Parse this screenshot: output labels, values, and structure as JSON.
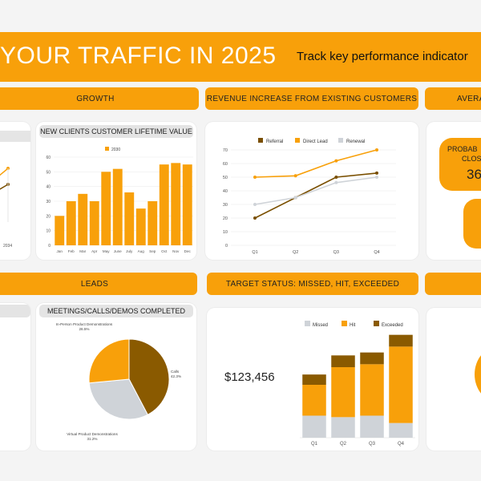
{
  "banner": {
    "title": "YOUR TRAFFIC IN 2025",
    "subtitle": "Track key performance indicator"
  },
  "sections": {
    "growth": "GROWTH",
    "revenue": "REVENUE INCREASE FROM EXISTING CUSTOMERS",
    "average": "AVERA",
    "leads": "LEADS",
    "target": "TARGET STATUS: MISSED, HIT, EXCEEDED"
  },
  "partial": {
    "growth_axis_label": "2034"
  },
  "probability": {
    "line1": "PROBAB",
    "line2": "CLOS",
    "value": "36"
  },
  "kpi": {
    "target_total": "$123,456"
  },
  "colors": {
    "accent": "#f8a00a",
    "dark": "#8a5a00",
    "gray": "#cfd3d8"
  },
  "chart_data": [
    {
      "type": "bar",
      "title": "NEW CLIENTS CUSTOMER LIFETIME VALUE",
      "legend": [
        "2030"
      ],
      "categories": [
        "Jan",
        "Feb",
        "Mar",
        "Apr",
        "May",
        "June",
        "July",
        "Aug",
        "Sep",
        "Oct",
        "Nov",
        "Dec"
      ],
      "values": [
        20,
        30,
        35,
        30,
        50,
        52,
        36,
        25,
        30,
        55,
        56,
        55
      ],
      "ylim": [
        0,
        60
      ],
      "yticks": [
        "0",
        "10",
        "20",
        "30",
        "40",
        "50",
        "60"
      ]
    },
    {
      "type": "line",
      "title": "REVENUE INCREASE FROM EXISTING CUSTOMERS",
      "categories": [
        "Q1",
        "Q2",
        "Q3",
        "Q4"
      ],
      "ylim": [
        0,
        70
      ],
      "yticks": [
        "0",
        "10",
        "20",
        "30",
        "40",
        "50",
        "60",
        "70"
      ],
      "series": [
        {
          "name": "Referral",
          "values": [
            20,
            35,
            50,
            53
          ]
        },
        {
          "name": "Direct Lead",
          "values": [
            50,
            51,
            62,
            70
          ]
        },
        {
          "name": "Renewal",
          "values": [
            30,
            35,
            46,
            50
          ]
        }
      ]
    },
    {
      "type": "pie",
      "title": "MEETINGS/CALLS/DEMOS COMPLETED",
      "slices": [
        {
          "name": "Calls",
          "pct_label": "42.3%",
          "value": 42.3
        },
        {
          "name": "Virtual Product Demonstrations",
          "pct_label": "31.2%",
          "value": 31.2
        },
        {
          "name": "In-Person Product Demonstrations",
          "pct_label": "26.5%",
          "value": 26.5
        }
      ]
    },
    {
      "type": "bar",
      "stacked": true,
      "title": "TARGET STATUS: MISSED, HIT, EXCEEDED",
      "categories": [
        "Q1",
        "Q2",
        "Q3",
        "Q4"
      ],
      "series": [
        {
          "name": "Missed",
          "values": [
            150,
            140,
            150,
            100
          ]
        },
        {
          "name": "Hit",
          "values": [
            210,
            340,
            350,
            520
          ]
        },
        {
          "name": "Exceeded",
          "values": [
            70,
            80,
            80,
            80
          ]
        }
      ],
      "ylim": [
        0,
        720
      ]
    }
  ]
}
